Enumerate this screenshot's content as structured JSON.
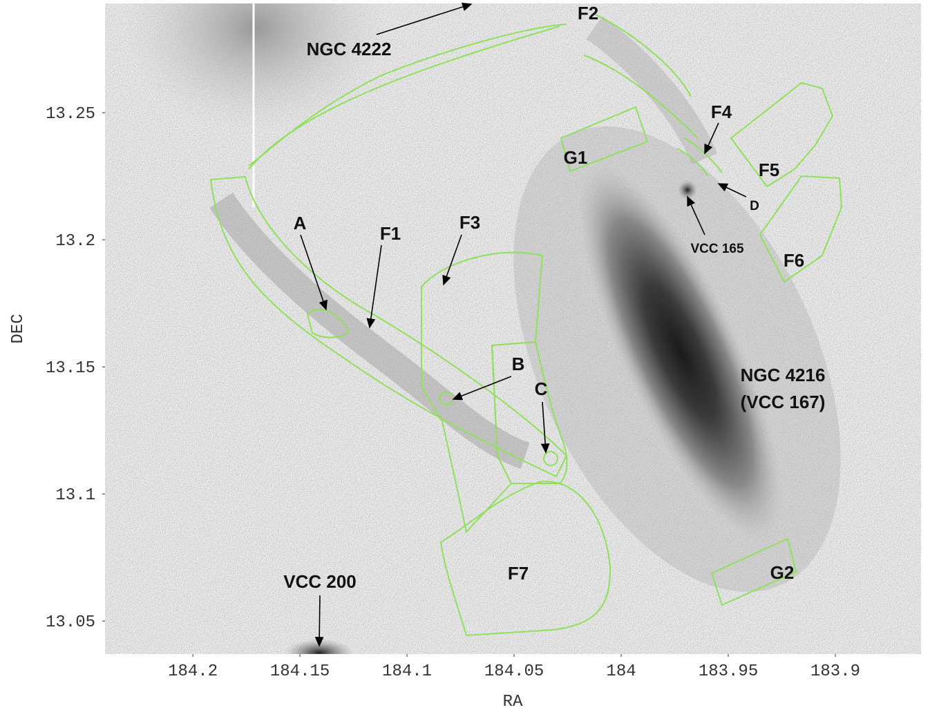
{
  "chart_data": {
    "type": "image",
    "xlabel": "RA",
    "ylabel": "DEC",
    "xlim": [
      184.241,
      183.86
    ],
    "ylim": [
      13.037,
      13.293
    ],
    "xticks": [
      184.2,
      184.15,
      184.1,
      184.05,
      184,
      183.95,
      183.9
    ],
    "yticks": [
      13.25,
      13.2,
      13.15,
      13.1,
      13.05
    ],
    "annotations": [
      "NGC 4222",
      "F2",
      "F4",
      "G1",
      "F5",
      "D",
      "VCC 165",
      "F6",
      "A",
      "F1",
      "F3",
      "B",
      "C",
      "NGC 4216",
      "(VCC 167)",
      "F7",
      "G2",
      "VCC 200"
    ]
  }
}
